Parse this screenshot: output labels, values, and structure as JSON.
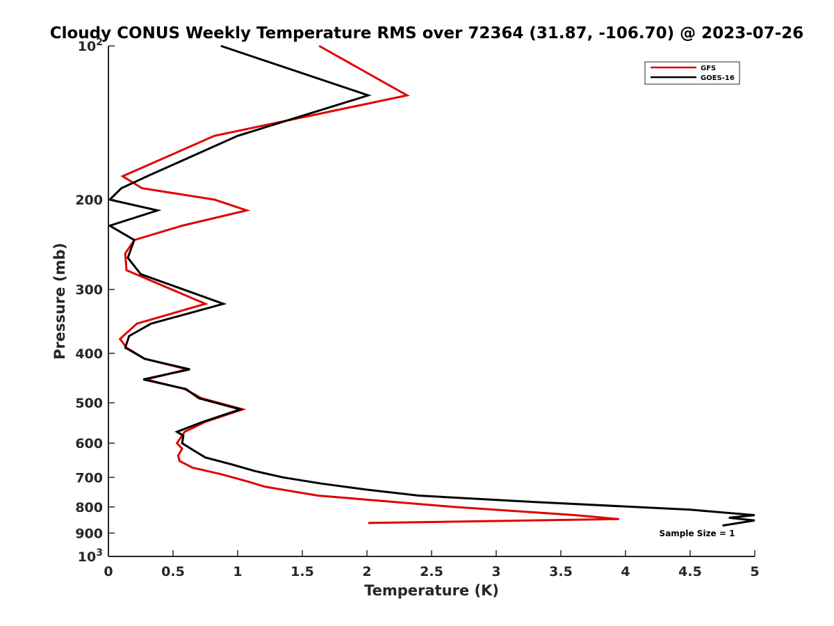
{
  "chart_data": {
    "type": "line",
    "title": "Cloudy CONUS Weekly Temperature RMS over 72364 (31.87, -106.70) @ 2023-07-26",
    "xlabel": "Temperature (K)",
    "ylabel": "Pressure (mb)",
    "xlim": [
      0,
      5
    ],
    "ylim": [
      100,
      1000
    ],
    "y_scale": "log",
    "y_reversed": true,
    "x_ticks": [
      "0",
      "0.5",
      "1",
      "1.5",
      "2",
      "2.5",
      "3",
      "3.5",
      "4",
      "4.5",
      "5"
    ],
    "y_ticks": [
      {
        "value": 100,
        "base": "10",
        "exp": "2"
      },
      {
        "value": 200,
        "label": "200"
      },
      {
        "value": 300,
        "label": "300"
      },
      {
        "value": 400,
        "label": "400"
      },
      {
        "value": 500,
        "label": "500"
      },
      {
        "value": 600,
        "label": "600"
      },
      {
        "value": 700,
        "label": "700"
      },
      {
        "value": 800,
        "label": "800"
      },
      {
        "value": 900,
        "label": "900"
      },
      {
        "value": 1000,
        "base": "10",
        "exp": "3"
      }
    ],
    "grid": false,
    "legend_position": "top-right",
    "series": [
      {
        "name": "GFS",
        "color": "#e00000",
        "x": [
          1.63,
          2.31,
          0.82,
          0.11,
          0.26,
          0.82,
          1.07,
          0.57,
          0.2,
          0.13,
          0.14,
          0.75,
          0.22,
          0.09,
          0.14,
          0.28,
          0.61,
          0.29,
          0.59,
          0.72,
          1.04,
          0.75,
          0.59,
          0.53,
          0.57,
          0.54,
          0.55,
          0.65,
          0.87,
          1.05,
          1.21,
          1.62,
          2.68,
          3.61,
          3.95,
          2.01
        ],
        "y": [
          100,
          125,
          150,
          180,
          190,
          200,
          210,
          225,
          240,
          255,
          275,
          320,
          350,
          375,
          390,
          410,
          430,
          450,
          470,
          490,
          515,
          545,
          570,
          600,
          615,
          635,
          650,
          670,
          690,
          710,
          730,
          760,
          800,
          830,
          845,
          860
        ]
      },
      {
        "name": "GOES-16",
        "color": "#000000",
        "x": [
          0.87,
          2.01,
          1.0,
          0.3,
          0.1,
          0.01,
          0.38,
          0.01,
          0.2,
          0.15,
          0.25,
          0.89,
          0.33,
          0.16,
          0.13,
          0.28,
          0.63,
          0.27,
          0.6,
          0.7,
          1.02,
          0.73,
          0.53,
          0.58,
          0.57,
          0.66,
          0.75,
          0.95,
          1.13,
          1.35,
          1.65,
          2.0,
          2.4,
          3.2,
          4.5,
          5.0,
          4.8,
          5.0,
          4.75
        ],
        "y": [
          100,
          125,
          150,
          180,
          190,
          200,
          210,
          225,
          240,
          260,
          280,
          320,
          350,
          370,
          390,
          410,
          430,
          450,
          470,
          490,
          515,
          545,
          570,
          580,
          600,
          620,
          640,
          660,
          680,
          700,
          720,
          740,
          760,
          780,
          810,
          830,
          840,
          850,
          870
        ]
      }
    ],
    "annotation": "Sample Size = 1"
  }
}
